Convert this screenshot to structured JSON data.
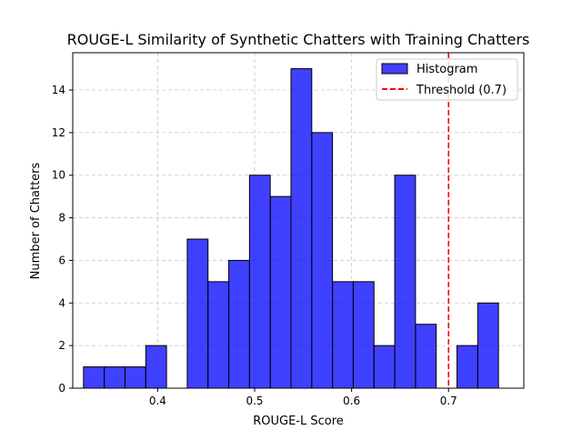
{
  "chart_data": {
    "type": "bar",
    "title": "ROUGE-L Similarity of Synthetic Chatters with Training Chatters",
    "xlabel": "ROUGE-L Score",
    "ylabel": "Number of Chatters",
    "xlim": [
      0.3124,
      0.7776
    ],
    "ylim": [
      0,
      15.75
    ],
    "xticks": [
      0.4,
      0.5,
      0.6,
      0.7
    ],
    "xtick_labels": [
      "0.4",
      "0.5",
      "0.6",
      "0.7"
    ],
    "yticks": [
      0,
      2,
      4,
      6,
      8,
      10,
      12,
      14
    ],
    "ytick_labels": [
      "0",
      "2",
      "4",
      "6",
      "8",
      "10",
      "12",
      "14"
    ],
    "grid": true,
    "legend_position": "top-right",
    "series": [
      {
        "name": "Histogram",
        "kind": "histogram",
        "color": "#0000ff",
        "edge_color": "#000000",
        "bin_start": 0.3235,
        "bin_width": 0.0214,
        "counts": [
          1,
          1,
          1,
          2,
          0,
          7,
          5,
          6,
          10,
          9,
          15,
          12,
          5,
          5,
          2,
          10,
          3,
          0,
          2,
          4
        ]
      },
      {
        "name": "Threshold (0.7)",
        "kind": "vline",
        "x": 0.7,
        "color": "#ff0000",
        "style": "dashed"
      }
    ]
  }
}
